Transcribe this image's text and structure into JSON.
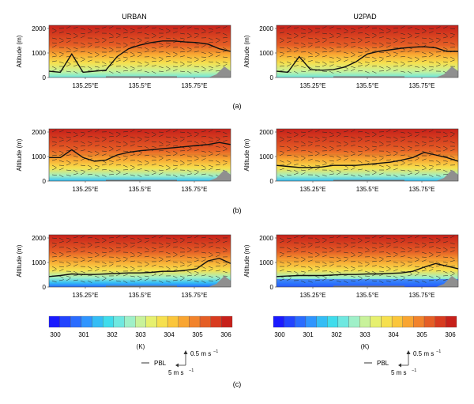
{
  "columns": [
    "URBAN",
    "U2PAD"
  ],
  "y_axis_label": "Altitude (m)",
  "y_ticks": [
    "0",
    "1000",
    "2000"
  ],
  "x_ticks": [
    "135.25°E",
    "135.5°E",
    "135.75°E"
  ],
  "row_labels": [
    "(a)",
    "(b)",
    "(c)"
  ],
  "colorbar": {
    "ticks": [
      "300",
      "301",
      "302",
      "303",
      "304",
      "305",
      "306"
    ],
    "unit": "(K)",
    "colors": [
      "#1a1aff",
      "#2244ff",
      "#2a6cff",
      "#2f95ff",
      "#34bdf5",
      "#3fdcec",
      "#6fe8e0",
      "#9ff0c8",
      "#c8f29a",
      "#e6f06e",
      "#f6e04e",
      "#fbc63b",
      "#f9a531",
      "#f2832b",
      "#e55e25",
      "#d83b1f",
      "#c7201a"
    ]
  },
  "legend": {
    "pbl_label": "PBL",
    "vertical_ref": "0.5 m s",
    "horizontal_ref": "5 m s",
    "exponent": "−1"
  },
  "panel_style": {
    "colors": {
      "hot": "#d5281c",
      "warm": "#f08a2c",
      "mid": "#f6d042",
      "cool": "#7fe6d2",
      "cold": "#3a88ff",
      "terrain": "#8f8f8f",
      "urban_bar": "#777777"
    }
  }
}
